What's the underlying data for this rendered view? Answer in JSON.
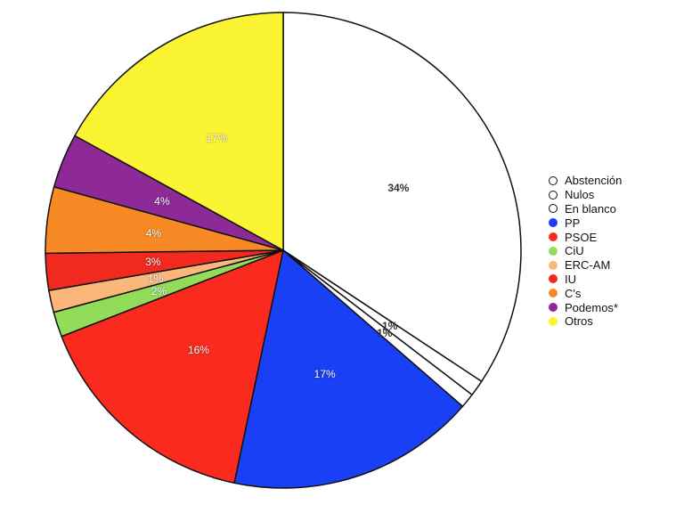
{
  "chart_data": {
    "type": "pie",
    "title": "",
    "legend_position": "right",
    "categories": [
      "Abstención",
      "Nulos",
      "En blanco",
      "PP",
      "PSOE",
      "CiU",
      "ERC-AM",
      "IU",
      "C's",
      "Podemos*",
      "Otros"
    ],
    "values": [
      34.3,
      1.1,
      1.0,
      16.9,
      15.8,
      1.7,
      1.5,
      2.5,
      4.5,
      3.7,
      17.0
    ],
    "labels": [
      "34%",
      "1%",
      "1%",
      "17%",
      "16%",
      "2%",
      "1%",
      "3%",
      "4%",
      "4%",
      "17%"
    ],
    "colors": [
      "#ffffff",
      "#ffffff",
      "#ffffff",
      "#1a40f5",
      "#fb2a1f",
      "#93dc5a",
      "#fbb77a",
      "#f1291f",
      "#f88a25",
      "#8e2a97",
      "#fbf432"
    ],
    "start_angle_deg": 0,
    "direction": "clockwise"
  }
}
